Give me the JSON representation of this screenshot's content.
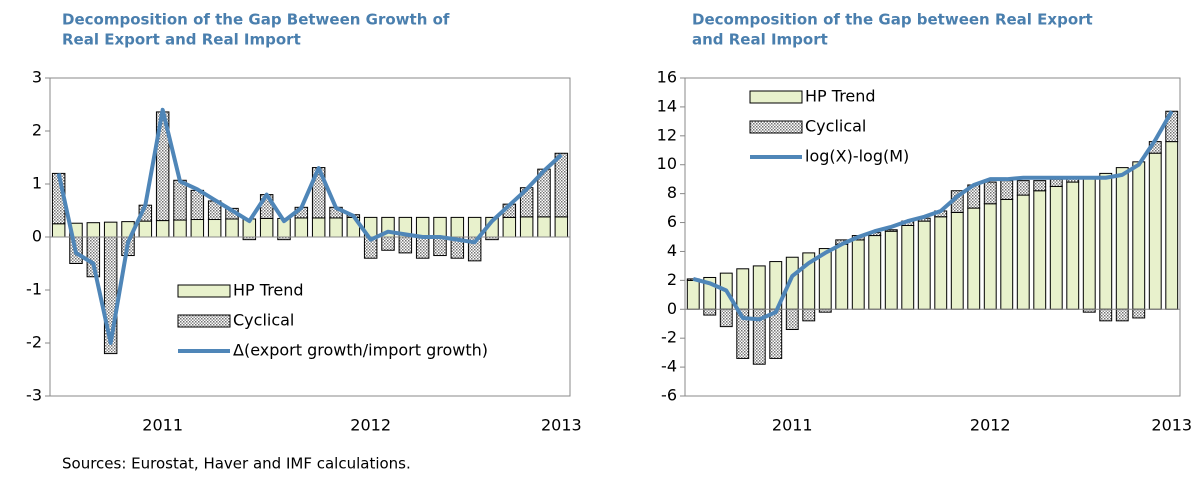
{
  "chart_data": [
    {
      "type": "bar",
      "title": [
        "Decomposition of the Gap Between Growth of",
        "Real Export and Real Import"
      ],
      "categories": [
        null,
        null,
        null,
        null,
        null,
        null,
        "2011",
        null,
        null,
        null,
        null,
        null,
        null,
        null,
        null,
        null,
        null,
        null,
        "2012",
        null,
        null,
        null,
        null,
        null,
        null,
        null,
        null,
        null,
        null,
        "2013"
      ],
      "ylim": [
        -3,
        3
      ],
      "yticks": [
        -3,
        -2,
        -1,
        0,
        1,
        2,
        3
      ],
      "legend": "lower right",
      "series": [
        {
          "name": "HP Trend",
          "kind": "bar",
          "color": "#e8f1cc",
          "values": [
            0.25,
            0.26,
            0.27,
            0.28,
            0.29,
            0.3,
            0.31,
            0.32,
            0.33,
            0.33,
            0.34,
            0.34,
            0.35,
            0.35,
            0.36,
            0.36,
            0.36,
            0.37,
            0.37,
            0.37,
            0.37,
            0.37,
            0.37,
            0.37,
            0.37,
            0.37,
            0.37,
            0.38,
            0.38,
            0.38
          ]
        },
        {
          "name": "Cyclical",
          "kind": "bar",
          "color": "#a0a0a0",
          "values": [
            0.95,
            -0.5,
            -0.75,
            -2.2,
            -0.35,
            0.3,
            2.05,
            0.75,
            0.55,
            0.35,
            0.2,
            -0.05,
            0.45,
            -0.05,
            0.2,
            0.95,
            0.2,
            0.05,
            -0.4,
            -0.25,
            -0.3,
            -0.4,
            -0.35,
            -0.4,
            -0.45,
            -0.05,
            0.25,
            0.55,
            0.9,
            1.2
          ]
        },
        {
          "name": "Δ(export growth/import growth)",
          "kind": "line",
          "color": "#4f86b8",
          "values": [
            1.2,
            -0.3,
            -0.5,
            -2.0,
            -0.1,
            0.6,
            2.4,
            1.05,
            0.9,
            0.7,
            0.5,
            0.3,
            0.8,
            0.3,
            0.55,
            1.3,
            0.55,
            0.4,
            -0.05,
            0.1,
            0.05,
            0,
            0,
            -0.05,
            -0.1,
            0.3,
            0.6,
            0.9,
            1.25,
            1.55
          ]
        }
      ]
    },
    {
      "type": "bar",
      "title": [
        "Decomposition of the Gap between Real Export",
        "and Real Import"
      ],
      "categories": [
        null,
        null,
        null,
        null,
        null,
        null,
        "2011",
        null,
        null,
        null,
        null,
        null,
        null,
        null,
        null,
        null,
        null,
        null,
        "2012",
        null,
        null,
        null,
        null,
        null,
        null,
        null,
        null,
        null,
        null,
        "2013"
      ],
      "ylim": [
        -6,
        16
      ],
      "yticks": [
        -6,
        -4,
        -2,
        0,
        2,
        4,
        6,
        8,
        10,
        12,
        14,
        16
      ],
      "legend": "upper left",
      "series": [
        {
          "name": "HP Trend",
          "kind": "bar",
          "color": "#e8f1cc",
          "values": [
            2.0,
            2.2,
            2.5,
            2.8,
            3.0,
            3.3,
            3.6,
            3.9,
            4.2,
            4.5,
            4.8,
            5.1,
            5.4,
            5.8,
            6.1,
            6.4,
            6.7,
            7.0,
            7.3,
            7.6,
            7.9,
            8.2,
            8.5,
            8.8,
            9.1,
            9.4,
            9.8,
            10.2,
            10.8,
            11.6
          ]
        },
        {
          "name": "Cyclical",
          "kind": "bar",
          "color": "#a0a0a0",
          "values": [
            0.1,
            -0.4,
            -1.2,
            -3.4,
            -3.8,
            -3.4,
            -1.4,
            -0.8,
            -0.2,
            0.3,
            0.3,
            0.2,
            0.1,
            0.3,
            0.2,
            0.4,
            1.5,
            1.6,
            1.5,
            1.3,
            1.0,
            0.7,
            0.5,
            0.3,
            -0.2,
            -0.8,
            -0.8,
            -0.6,
            0.8,
            2.1
          ]
        },
        {
          "name": "log(X)-log(M)",
          "kind": "line",
          "color": "#4f86b8",
          "values": [
            2.1,
            1.8,
            1.3,
            -0.6,
            -0.7,
            -0.2,
            2.3,
            3.2,
            3.9,
            4.5,
            5.0,
            5.4,
            5.7,
            6.1,
            6.4,
            6.8,
            7.8,
            8.6,
            9.0,
            9.0,
            9.1,
            9.1,
            9.1,
            9.1,
            9.1,
            9.1,
            9.3,
            10.0,
            11.7,
            13.7
          ]
        }
      ]
    }
  ],
  "source": "Sources: Eurostat, Haver and IMF calculations."
}
